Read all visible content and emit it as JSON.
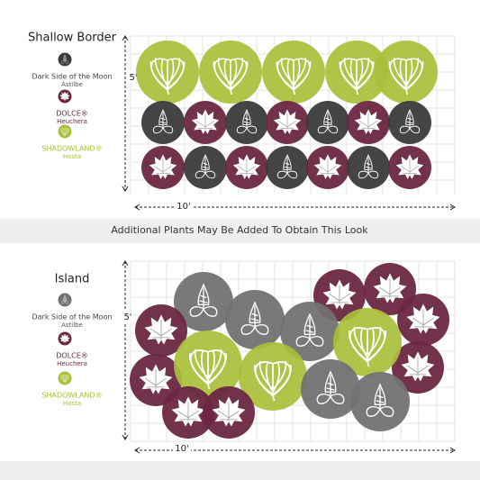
{
  "panels": [
    {
      "title": "Shallow Border",
      "height_label": "5'",
      "width_label": "10'",
      "legend": [
        {
          "name": "Dark Side of the Moon",
          "genus": "Astilbe"
        },
        {
          "name": "DOLCE®",
          "genus": "Heuchera"
        },
        {
          "name": "SHADOWLAND®",
          "genus": "Hosta"
        }
      ]
    },
    {
      "title": "Island",
      "height_label": "5'",
      "width_label": "10'",
      "legend": [
        {
          "name": "Dark Side of the Moon",
          "genus": "Astilbe"
        },
        {
          "name": "DOLCE®",
          "genus": "Heuchera"
        },
        {
          "name": "SHADOWLAND®",
          "genus": "Hosta"
        }
      ]
    }
  ],
  "banner": "Additional Plants May Be Added To Obtain This Look"
}
